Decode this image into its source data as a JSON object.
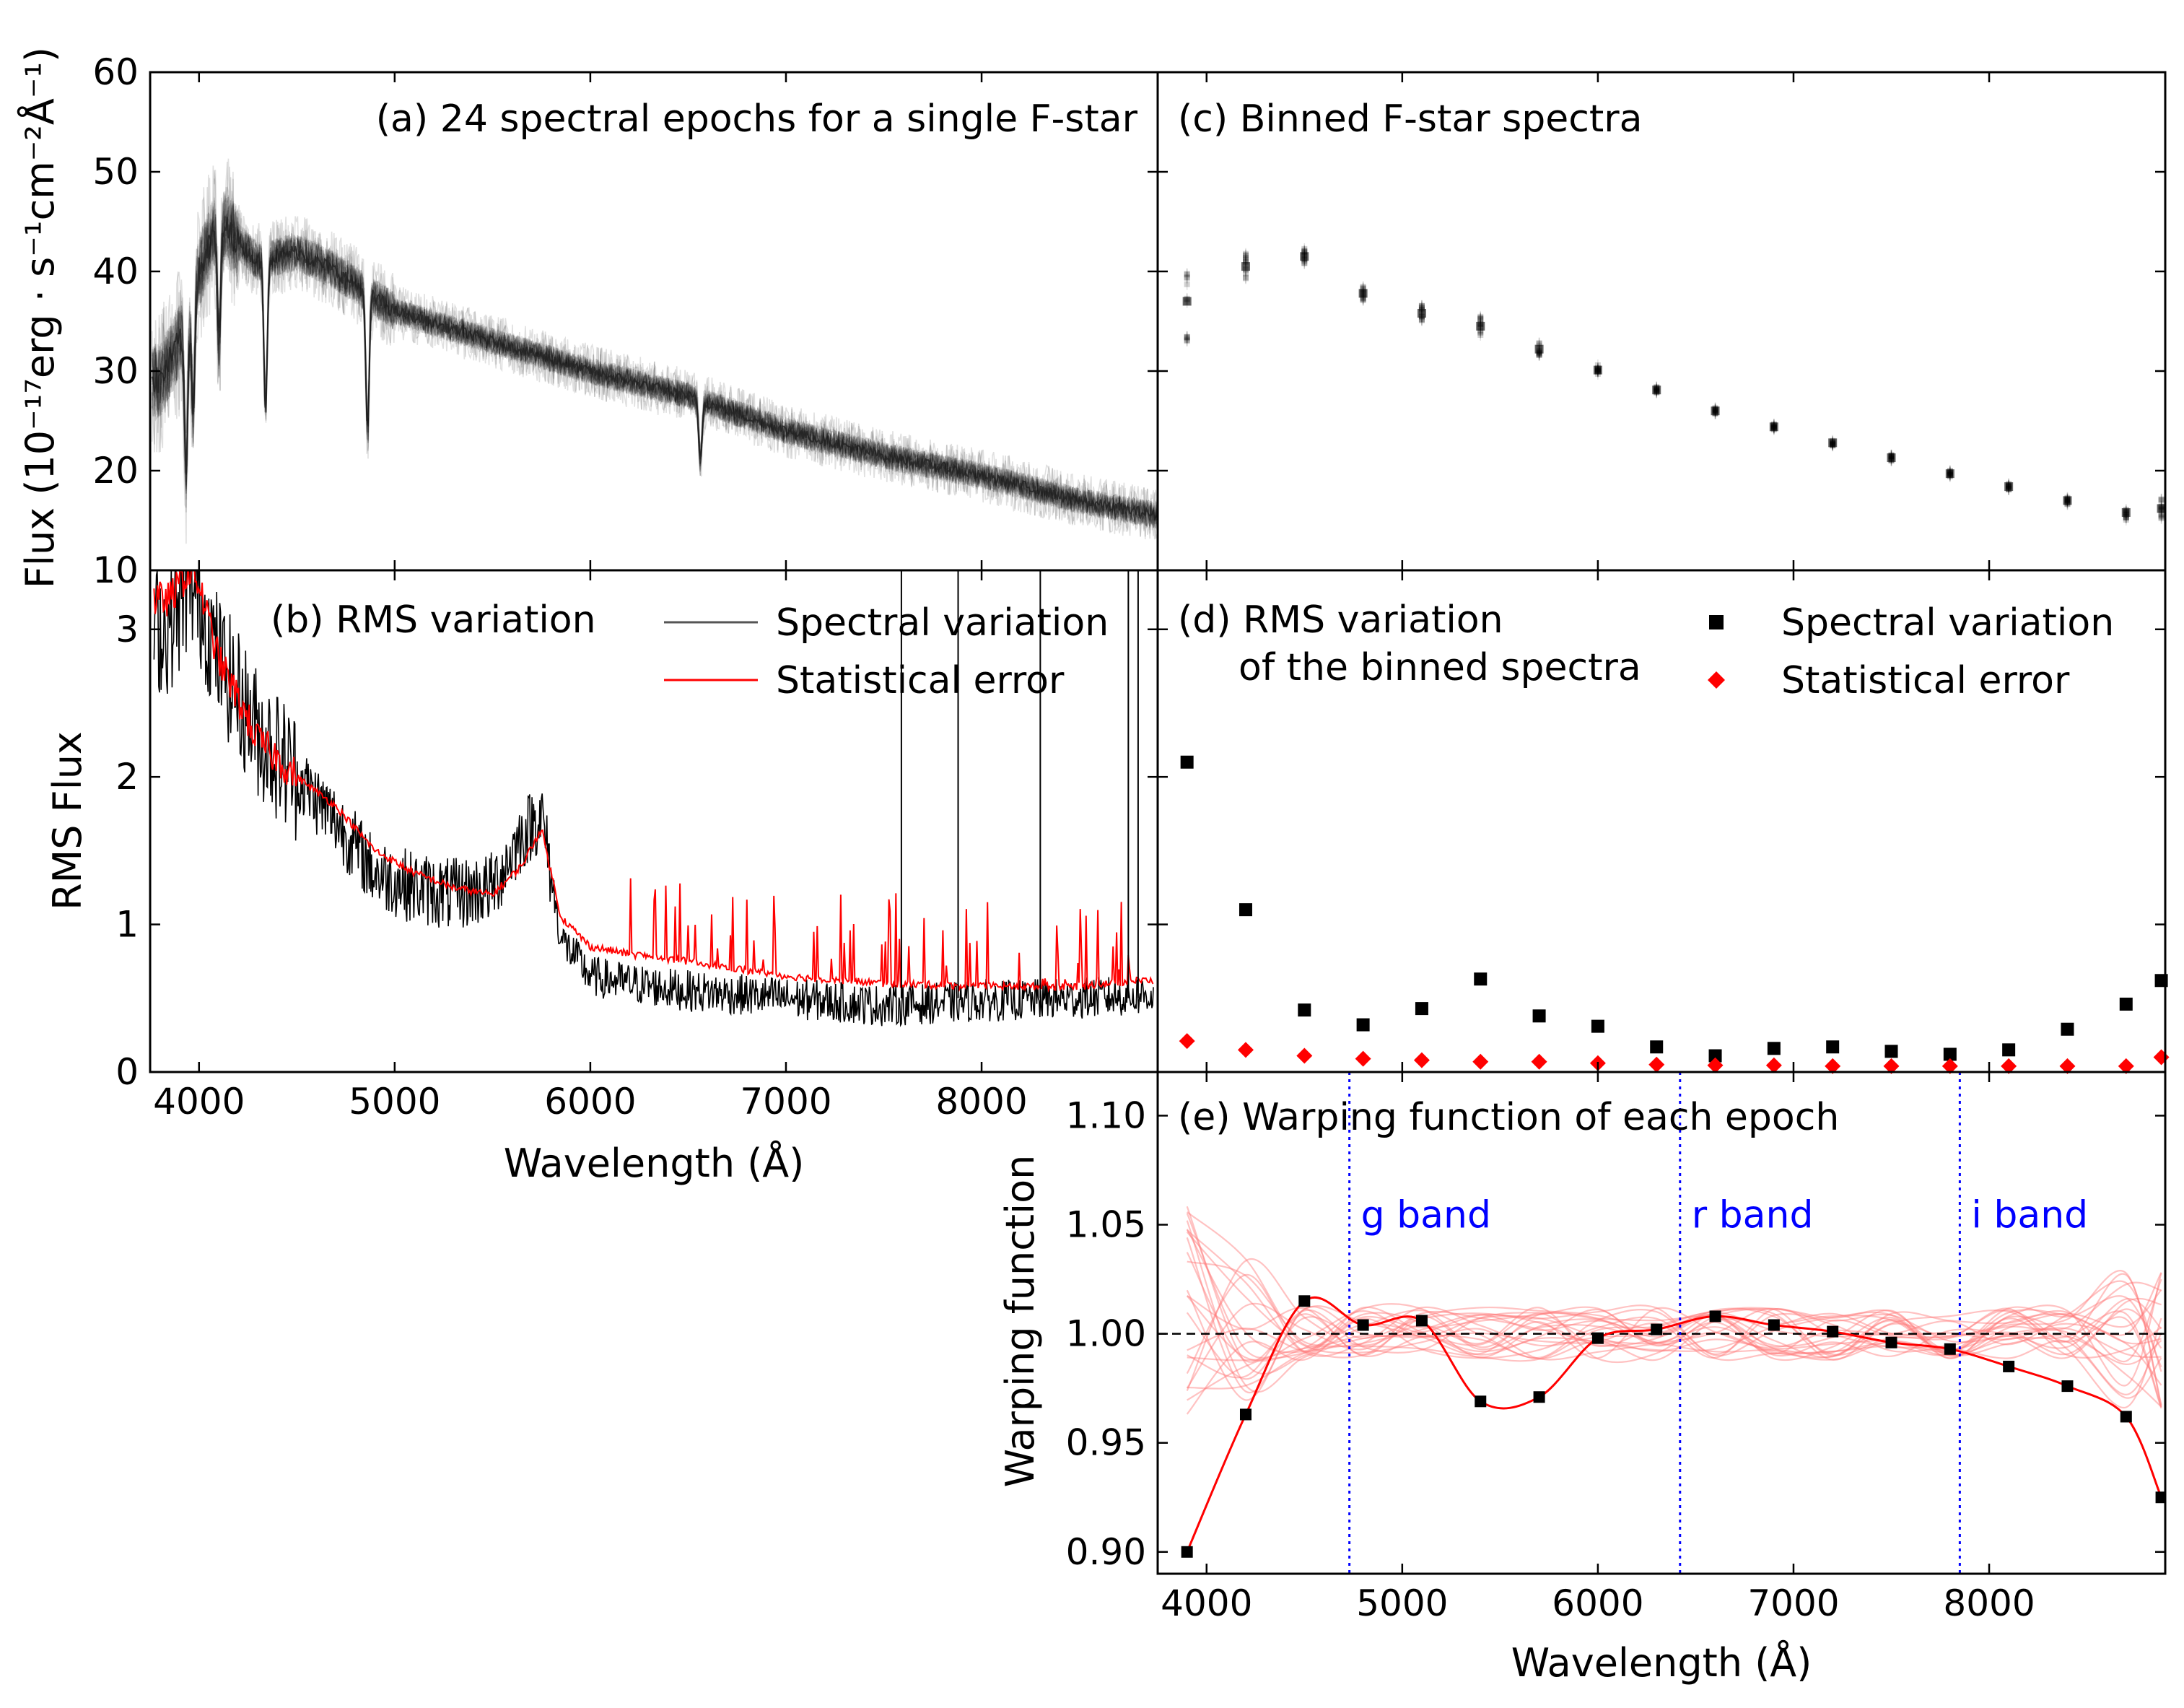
{
  "figure": {
    "shared_ylabel": "Flux (10⁻¹⁷erg · s⁻¹cm⁻²Å⁻¹)",
    "colors": {
      "black": "#000000",
      "red": "#ff0000",
      "pink": "#ff9a9a",
      "blue": "#0000ff",
      "gray": "#555555"
    }
  },
  "chart_data": [
    {
      "id": "a",
      "type": "line",
      "title": "(a) 24 spectral epochs for a single F-star",
      "xlabel": "",
      "ylabel": "Flux (10⁻¹⁷erg · s⁻¹cm⁻²Å⁻¹)",
      "xlim": [
        3750,
        8900
      ],
      "ylim": [
        10,
        60
      ],
      "yticks": [
        10,
        20,
        30,
        40,
        50,
        60
      ],
      "n_epochs": 24,
      "continuum": {
        "x": [
          3800,
          3900,
          4000,
          4100,
          4300,
          4500,
          4700,
          5000,
          5500,
          6000,
          6500,
          7000,
          7500,
          8000,
          8500,
          8900
        ],
        "y": [
          29,
          33,
          40,
          45,
          41,
          42,
          40,
          36,
          33,
          30,
          27.5,
          24,
          21.5,
          19.5,
          17,
          15.5
        ]
      },
      "absorption_lines": [
        {
          "x": 3934,
          "depth": 16
        },
        {
          "x": 3970,
          "depth": 12
        },
        {
          "x": 4102,
          "depth": 12
        },
        {
          "x": 4340,
          "depth": 15
        },
        {
          "x": 4861,
          "depth": 14
        },
        {
          "x": 6563,
          "depth": 6
        }
      ]
    },
    {
      "id": "b",
      "type": "line",
      "title": "(b) RMS variation",
      "xlabel": "Wavelength (Å)",
      "ylabel": "RMS Flux",
      "xlim": [
        3750,
        8900
      ],
      "ylim": [
        0,
        3.4
      ],
      "xticks": [
        4000,
        5000,
        6000,
        7000,
        8000
      ],
      "yticks": [
        0,
        1,
        2,
        3
      ],
      "legend": [
        "Spectral variation",
        "Statistical error"
      ],
      "series": [
        {
          "name": "Spectral variation",
          "color": "#000000",
          "x": [
            3850,
            3950,
            4000,
            4100,
            4300,
            4500,
            4700,
            4900,
            5100,
            5300,
            5500,
            5650,
            5750,
            5850,
            6000,
            6200,
            6500,
            7000,
            7500,
            8000,
            8500,
            8800
          ],
          "y": [
            3.0,
            3.3,
            3.2,
            2.8,
            2.3,
            2.0,
            1.7,
            1.35,
            1.25,
            1.2,
            1.25,
            1.6,
            1.75,
            0.9,
            0.65,
            0.6,
            0.55,
            0.5,
            0.45,
            0.48,
            0.5,
            0.52
          ]
        },
        {
          "name": "Statistical error",
          "color": "#ff0000",
          "x": [
            3850,
            3950,
            4000,
            4100,
            4300,
            4500,
            4700,
            4900,
            5100,
            5300,
            5500,
            5650,
            5750,
            5850,
            6000,
            6200,
            6500,
            7000,
            7500,
            8000,
            8500,
            8800
          ],
          "y": [
            3.2,
            3.4,
            3.3,
            2.8,
            2.25,
            2.0,
            1.8,
            1.5,
            1.35,
            1.25,
            1.2,
            1.4,
            1.65,
            1.05,
            0.85,
            0.8,
            0.75,
            0.65,
            0.6,
            0.58,
            0.58,
            0.62
          ]
        }
      ],
      "spikes": [
        {
          "x": 7590,
          "y": 3.4
        },
        {
          "x": 7880,
          "y": 3.4
        },
        {
          "x": 8300,
          "y": 3.4
        },
        {
          "x": 8750,
          "y": 3.4
        },
        {
          "x": 8800,
          "y": 3.4
        }
      ]
    },
    {
      "id": "c",
      "type": "scatter",
      "title": "(c) Binned F-star spectra",
      "xlim": [
        3750,
        8900
      ],
      "ylim": [
        10,
        60
      ],
      "x": [
        3900,
        4200,
        4500,
        4800,
        5100,
        5400,
        5700,
        6000,
        6300,
        6600,
        6900,
        7200,
        7500,
        7800,
        8100,
        8400,
        8700,
        8880
      ],
      "y": [
        37.0,
        40.5,
        41.5,
        37.8,
        35.8,
        34.5,
        32.2,
        30.1,
        28.1,
        26.0,
        24.4,
        22.8,
        21.3,
        19.7,
        18.4,
        17.0,
        15.8,
        16.2
      ],
      "spread": [
        4.0,
        1.8,
        0.8,
        0.7,
        0.8,
        1.2,
        0.7,
        0.5,
        0.3,
        0.3,
        0.3,
        0.3,
        0.3,
        0.3,
        0.3,
        0.4,
        0.8,
        1.0
      ]
    },
    {
      "id": "d",
      "type": "scatter",
      "title_line1": "(d) RMS variation",
      "title_line2": "of the binned spectra",
      "xlim": [
        3750,
        8900
      ],
      "ylim": [
        0,
        3.4
      ],
      "legend": [
        "Spectral variation",
        "Statistical error"
      ],
      "series": [
        {
          "name": "Spectral variation",
          "marker": "square",
          "color": "#000000",
          "x": [
            3900,
            4200,
            4500,
            4800,
            5100,
            5400,
            5700,
            6000,
            6300,
            6600,
            6900,
            7200,
            7500,
            7800,
            8100,
            8400,
            8700,
            8880
          ],
          "y": [
            2.1,
            1.1,
            0.42,
            0.32,
            0.43,
            0.63,
            0.38,
            0.31,
            0.17,
            0.11,
            0.16,
            0.17,
            0.14,
            0.12,
            0.15,
            0.29,
            0.46,
            0.62
          ]
        },
        {
          "name": "Statistical error",
          "marker": "diamond",
          "color": "#ff0000",
          "x": [
            3900,
            4200,
            4500,
            4800,
            5100,
            5400,
            5700,
            6000,
            6300,
            6600,
            6900,
            7200,
            7500,
            7800,
            8100,
            8400,
            8700,
            8880
          ],
          "y": [
            0.21,
            0.15,
            0.11,
            0.09,
            0.08,
            0.07,
            0.07,
            0.06,
            0.05,
            0.045,
            0.045,
            0.04,
            0.04,
            0.04,
            0.04,
            0.04,
            0.04,
            0.1
          ]
        }
      ]
    },
    {
      "id": "e",
      "type": "line",
      "title": "(e) Warping function of each epoch",
      "xlabel": "Wavelength (Å)",
      "ylabel": "Warping function",
      "xlim": [
        3750,
        8900
      ],
      "ylim": [
        0.89,
        1.12
      ],
      "xticks": [
        4000,
        5000,
        6000,
        7000,
        8000
      ],
      "yticks": [
        0.9,
        0.95,
        1.0,
        1.05,
        1.1
      ],
      "ytick_labels": [
        "0.90",
        "0.95",
        "1.00",
        "1.05",
        "1.10"
      ],
      "band_lines": [
        {
          "x": 4730,
          "label": "g band"
        },
        {
          "x": 6420,
          "label": "r band"
        },
        {
          "x": 7850,
          "label": "i band"
        }
      ],
      "reference": 1.0,
      "epoch_count": 23,
      "highlight": {
        "x": [
          3900,
          4200,
          4500,
          4800,
          5100,
          5400,
          5700,
          6000,
          6300,
          6600,
          6900,
          7200,
          7500,
          7800,
          8100,
          8400,
          8700,
          8880
        ],
        "y": [
          0.9,
          0.963,
          1.015,
          1.004,
          1.006,
          0.969,
          0.971,
          0.998,
          1.002,
          1.008,
          1.004,
          1.001,
          0.996,
          0.993,
          0.985,
          0.976,
          0.962,
          0.925
        ]
      }
    }
  ]
}
